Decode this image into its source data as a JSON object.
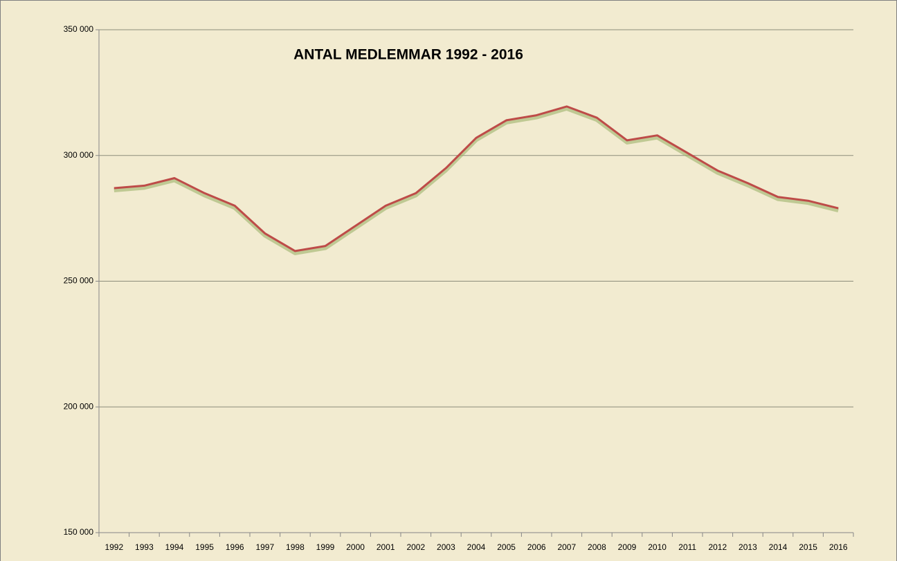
{
  "chart_data": {
    "type": "line",
    "title": "ANTAL MEDLEMMAR   1992 - 2016",
    "categories": [
      "1992",
      "1993",
      "1994",
      "1995",
      "1996",
      "1997",
      "1998",
      "1999",
      "2000",
      "2001",
      "2002",
      "2003",
      "2004",
      "2005",
      "2006",
      "2007",
      "2008",
      "2009",
      "2010",
      "2011",
      "2012",
      "2013",
      "2014",
      "2015",
      "2016"
    ],
    "values": [
      287000,
      288000,
      291000,
      285000,
      280000,
      269000,
      262000,
      264000,
      272000,
      280000,
      285000,
      295000,
      307000,
      314000,
      316000,
      319500,
      315000,
      306000,
      308000,
      301000,
      294000,
      289000,
      283500,
      282000,
      279000
    ],
    "color": "#be4b48",
    "ylim": [
      150000,
      350000
    ],
    "yticks": [
      {
        "value": 150000,
        "label": "150 000"
      },
      {
        "value": 200000,
        "label": "200 000"
      },
      {
        "value": 250000,
        "label": "250 000"
      },
      {
        "value": 300000,
        "label": "300 000"
      },
      {
        "value": 350000,
        "label": "350 000"
      }
    ],
    "grid": true
  }
}
